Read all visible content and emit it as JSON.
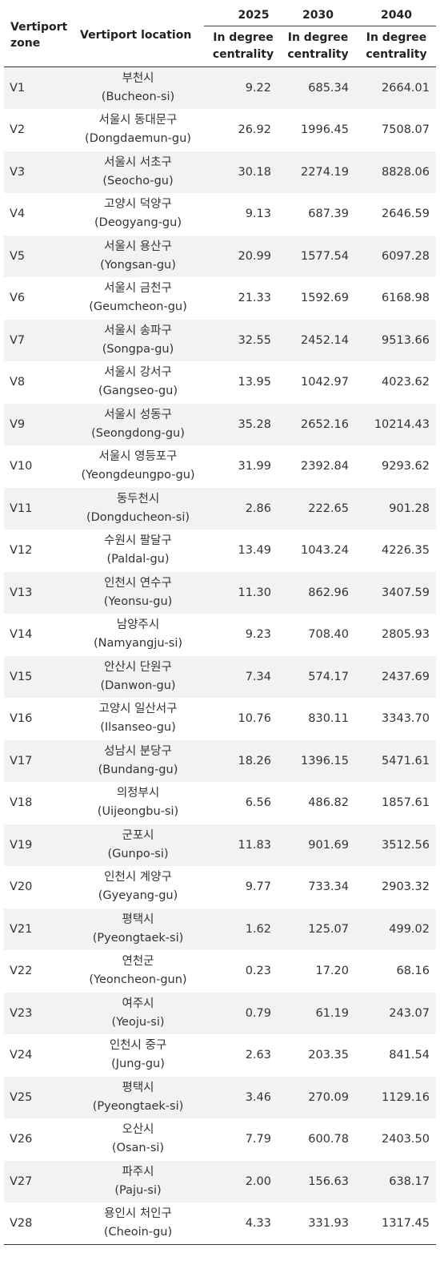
{
  "table": {
    "headers": {
      "zone": "Vertiport zone",
      "location": "Vertiport location",
      "years": [
        "2025",
        "2030",
        "2040"
      ],
      "sub_label": "In degree centrality"
    },
    "rows": [
      {
        "zone": "V1",
        "ko": "부천시",
        "en": "(Bucheon-si)",
        "y2025": "9.22",
        "y2030": "685.34",
        "y2040": "2664.01"
      },
      {
        "zone": "V2",
        "ko": "서울시 동대문구",
        "en": "(Dongdaemun-gu)",
        "y2025": "26.92",
        "y2030": "1996.45",
        "y2040": "7508.07"
      },
      {
        "zone": "V3",
        "ko": "서울시 서초구",
        "en": "(Seocho-gu)",
        "y2025": "30.18",
        "y2030": "2274.19",
        "y2040": "8828.06"
      },
      {
        "zone": "V4",
        "ko": "고양시 덕양구",
        "en": "(Deogyang-gu)",
        "y2025": "9.13",
        "y2030": "687.39",
        "y2040": "2646.59"
      },
      {
        "zone": "V5",
        "ko": "서울시 용산구",
        "en": "(Yongsan-gu)",
        "y2025": "20.99",
        "y2030": "1577.54",
        "y2040": "6097.28"
      },
      {
        "zone": "V6",
        "ko": "서울시 금천구",
        "en": "(Geumcheon-gu)",
        "y2025": "21.33",
        "y2030": "1592.69",
        "y2040": "6168.98"
      },
      {
        "zone": "V7",
        "ko": "서울시 송파구",
        "en": "(Songpa-gu)",
        "y2025": "32.55",
        "y2030": "2452.14",
        "y2040": "9513.66"
      },
      {
        "zone": "V8",
        "ko": "서울시 강서구",
        "en": "(Gangseo-gu)",
        "y2025": "13.95",
        "y2030": "1042.97",
        "y2040": "4023.62"
      },
      {
        "zone": "V9",
        "ko": "서울시 성동구",
        "en": "(Seongdong-gu)",
        "y2025": "35.28",
        "y2030": "2652.16",
        "y2040": "10214.43"
      },
      {
        "zone": "V10",
        "ko": "서울시 영등포구",
        "en": "(Yeongdeungpo-gu)",
        "y2025": "31.99",
        "y2030": "2392.84",
        "y2040": "9293.62"
      },
      {
        "zone": "V11",
        "ko": "동두천시",
        "en": "(Dongducheon-si)",
        "y2025": "2.86",
        "y2030": "222.65",
        "y2040": "901.28"
      },
      {
        "zone": "V12",
        "ko": "수원시 팔달구",
        "en": "(Paldal-gu)",
        "y2025": "13.49",
        "y2030": "1043.24",
        "y2040": "4226.35"
      },
      {
        "zone": "V13",
        "ko": "인천시 연수구",
        "en": "(Yeonsu-gu)",
        "y2025": "11.30",
        "y2030": "862.96",
        "y2040": "3407.59"
      },
      {
        "zone": "V14",
        "ko": "남양주시",
        "en": "(Namyangju-si)",
        "y2025": "9.23",
        "y2030": "708.40",
        "y2040": "2805.93"
      },
      {
        "zone": "V15",
        "ko": "안산시 단원구",
        "en": "(Danwon-gu)",
        "y2025": "7.34",
        "y2030": "574.17",
        "y2040": "2437.69"
      },
      {
        "zone": "V16",
        "ko": "고양시 일산서구",
        "en": "(Ilsanseo-gu)",
        "y2025": "10.76",
        "y2030": "830.11",
        "y2040": "3343.70"
      },
      {
        "zone": "V17",
        "ko": "성남시 분당구",
        "en": "(Bundang-gu)",
        "y2025": "18.26",
        "y2030": "1396.15",
        "y2040": "5471.61"
      },
      {
        "zone": "V18",
        "ko": "의정부시",
        "en": "(Uijeongbu-si)",
        "y2025": "6.56",
        "y2030": "486.82",
        "y2040": "1857.61"
      },
      {
        "zone": "V19",
        "ko": "군포시",
        "en": "(Gunpo-si)",
        "y2025": "11.83",
        "y2030": "901.69",
        "y2040": "3512.56"
      },
      {
        "zone": "V20",
        "ko": "인천시 계양구",
        "en": "(Gyeyang-gu)",
        "y2025": "9.77",
        "y2030": "733.34",
        "y2040": "2903.32"
      },
      {
        "zone": "V21",
        "ko": "평택시",
        "en": "(Pyeongtaek-si)",
        "y2025": "1.62",
        "y2030": "125.07",
        "y2040": "499.02"
      },
      {
        "zone": "V22",
        "ko": "연천군",
        "en": "(Yeoncheon-gun)",
        "y2025": "0.23",
        "y2030": "17.20",
        "y2040": "68.16"
      },
      {
        "zone": "V23",
        "ko": "여주시",
        "en": "(Yeoju-si)",
        "y2025": "0.79",
        "y2030": "61.19",
        "y2040": "243.07"
      },
      {
        "zone": "V24",
        "ko": "인천시 중구",
        "en": "(Jung-gu)",
        "y2025": "2.63",
        "y2030": "203.35",
        "y2040": "841.54"
      },
      {
        "zone": "V25",
        "ko": "평택시",
        "en": "(Pyeongtaek-si)",
        "y2025": "3.46",
        "y2030": "270.09",
        "y2040": "1129.16"
      },
      {
        "zone": "V26",
        "ko": "오산시",
        "en": "(Osan-si)",
        "y2025": "7.79",
        "y2030": "600.78",
        "y2040": "2403.50"
      },
      {
        "zone": "V27",
        "ko": "파주시",
        "en": "(Paju-si)",
        "y2025": "2.00",
        "y2030": "156.63",
        "y2040": "638.17"
      },
      {
        "zone": "V28",
        "ko": "용인시 처인구",
        "en": "(Cheoin-gu)",
        "y2025": "4.33",
        "y2030": "331.93",
        "y2040": "1317.45"
      }
    ]
  }
}
